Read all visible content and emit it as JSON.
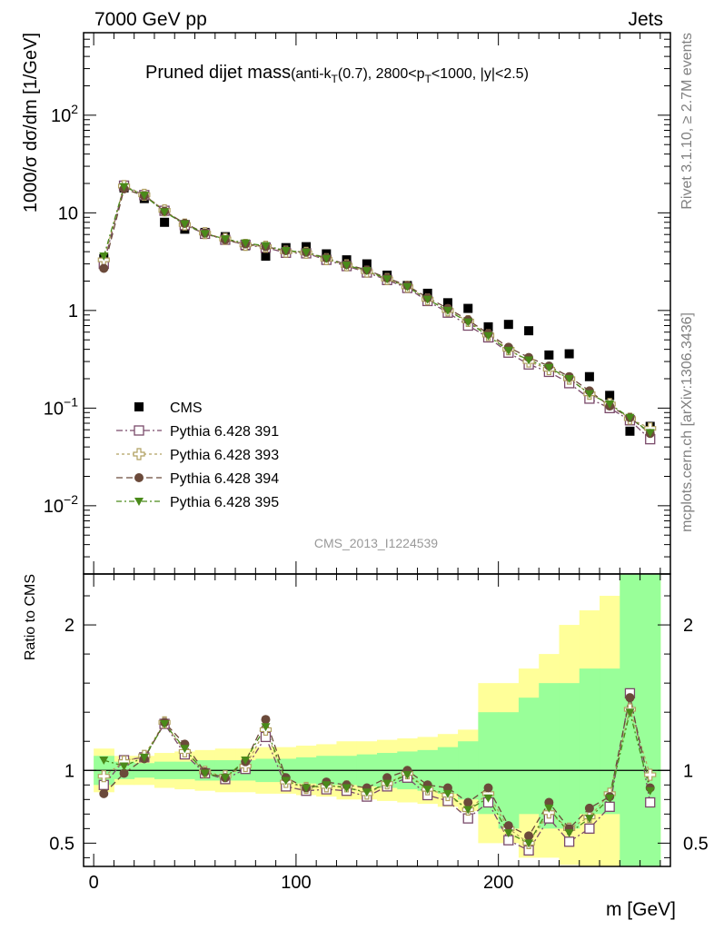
{
  "header": {
    "left": "7000 GeV pp",
    "right": "Jets",
    "side_top": "Rivet 3.1.10, ≥ 2.7M events",
    "side_bottom": "mcplots.cern.ch [arXiv:1306.3436]",
    "analysis_id": "CMS_2013_I1224539"
  },
  "chart_data": [
    {
      "type": "scatter",
      "panel": "main",
      "title_main": "Pruned dijet mass",
      "title_sub": "(anti-k_T(0.7), 2800<p_T<1000, |y|<2.5)",
      "ylabel": "1000/σ dσ/dm [1/GeV]",
      "xlabel": "",
      "y_scale": "log",
      "ylim": [
        0.002,
        700
      ],
      "xlim": [
        -5,
        285
      ],
      "y_tick_labels": [
        "10^-2",
        "10^-1",
        "1",
        "10",
        "10^2"
      ],
      "legend_position": "bottom-left",
      "x": [
        5,
        15,
        25,
        35,
        45,
        55,
        65,
        75,
        85,
        95,
        105,
        115,
        125,
        135,
        145,
        155,
        165,
        175,
        185,
        195,
        205,
        215,
        225,
        235,
        245,
        255,
        265,
        275
      ],
      "series": [
        {
          "name": "CMS",
          "marker": "square-filled",
          "color": "#000000",
          "values": [
            3.4,
            18.0,
            14.0,
            8.0,
            6.8,
            6.3,
            5.7,
            4.6,
            3.6,
            4.4,
            4.5,
            3.8,
            3.3,
            3.0,
            2.3,
            1.8,
            1.5,
            1.2,
            1.05,
            0.68,
            0.72,
            0.62,
            0.35,
            0.36,
            0.21,
            0.135,
            0.058,
            0.065
          ]
        },
        {
          "name": "Pythia 6.428 391",
          "marker": "square-open",
          "color": "#7a4a6a",
          "values": [
            3.0,
            19.0,
            15.2,
            10.5,
            7.5,
            6.1,
            5.3,
            4.7,
            4.4,
            3.9,
            3.85,
            3.3,
            2.85,
            2.45,
            2.05,
            1.7,
            1.25,
            0.95,
            0.7,
            0.53,
            0.37,
            0.28,
            0.235,
            0.18,
            0.125,
            0.1,
            0.075,
            0.048
          ]
        },
        {
          "name": "Pythia 6.428 393",
          "marker": "cross-open",
          "color": "#b0a060",
          "values": [
            3.3,
            18.8,
            15.3,
            10.6,
            7.6,
            6.2,
            5.4,
            4.7,
            4.5,
            4.0,
            3.9,
            3.35,
            2.9,
            2.5,
            2.1,
            1.75,
            1.3,
            1.0,
            0.78,
            0.56,
            0.4,
            0.3,
            0.25,
            0.2,
            0.14,
            0.11,
            0.078,
            0.062
          ]
        },
        {
          "name": "Pythia 6.428 394",
          "marker": "circle-filled",
          "color": "#6b4a3a",
          "values": [
            2.7,
            17.6,
            15.0,
            10.4,
            7.8,
            6.2,
            5.3,
            4.8,
            4.5,
            4.1,
            3.95,
            3.45,
            2.95,
            2.6,
            2.15,
            1.8,
            1.35,
            1.05,
            0.8,
            0.58,
            0.42,
            0.33,
            0.27,
            0.21,
            0.15,
            0.105,
            0.08,
            0.055
          ]
        },
        {
          "name": "Pythia 6.428 395",
          "marker": "triangle-down-filled",
          "color": "#4a8a1a",
          "values": [
            3.6,
            18.5,
            15.1,
            10.2,
            7.7,
            6.1,
            5.4,
            4.9,
            4.6,
            4.1,
            3.95,
            3.4,
            2.9,
            2.55,
            2.1,
            1.75,
            1.3,
            1.0,
            0.76,
            0.55,
            0.39,
            0.31,
            0.26,
            0.2,
            0.14,
            0.11,
            0.08,
            0.056
          ]
        }
      ]
    },
    {
      "type": "scatter",
      "panel": "ratio",
      "ylabel": "Ratio to CMS",
      "xlabel": "m [GeV]",
      "ylim": [
        0.34,
        2.35
      ],
      "xlim": [
        -5,
        285
      ],
      "x_ticks": [
        0,
        100,
        200
      ],
      "y_ticks": [
        0.5,
        1,
        2
      ],
      "reference_line": 1,
      "band_colors": {
        "inner": "#99ff99",
        "outer": "#ffff99"
      },
      "x": [
        5,
        15,
        25,
        35,
        45,
        55,
        65,
        75,
        85,
        95,
        105,
        115,
        125,
        135,
        145,
        155,
        165,
        175,
        185,
        195,
        205,
        215,
        225,
        235,
        245,
        255,
        265,
        275
      ],
      "band_inner": [
        [
          0.9,
          1.1
        ],
        [
          0.94,
          1.06
        ],
        [
          0.95,
          1.05
        ],
        [
          0.94,
          1.06
        ],
        [
          0.94,
          1.06
        ],
        [
          0.93,
          1.07
        ],
        [
          0.93,
          1.07
        ],
        [
          0.93,
          1.07
        ],
        [
          0.92,
          1.08
        ],
        [
          0.92,
          1.08
        ],
        [
          0.91,
          1.09
        ],
        [
          0.9,
          1.1
        ],
        [
          0.9,
          1.1
        ],
        [
          0.89,
          1.11
        ],
        [
          0.88,
          1.12
        ],
        [
          0.87,
          1.13
        ],
        [
          0.86,
          1.14
        ],
        [
          0.84,
          1.16
        ],
        [
          0.8,
          1.2
        ],
        [
          0.7,
          1.4
        ],
        [
          0.6,
          1.4
        ],
        [
          0.7,
          1.5
        ],
        [
          0.6,
          1.6
        ],
        [
          0.6,
          1.6
        ],
        [
          0.7,
          1.7
        ],
        [
          0.7,
          1.7
        ],
        [
          0.3,
          2.4
        ],
        [
          0.3,
          2.4
        ]
      ],
      "band_outer": [
        [
          0.85,
          1.15
        ],
        [
          0.9,
          1.1
        ],
        [
          0.9,
          1.1
        ],
        [
          0.88,
          1.12
        ],
        [
          0.87,
          1.13
        ],
        [
          0.86,
          1.14
        ],
        [
          0.85,
          1.15
        ],
        [
          0.85,
          1.15
        ],
        [
          0.84,
          1.16
        ],
        [
          0.84,
          1.16
        ],
        [
          0.83,
          1.17
        ],
        [
          0.82,
          1.18
        ],
        [
          0.8,
          1.2
        ],
        [
          0.8,
          1.2
        ],
        [
          0.79,
          1.21
        ],
        [
          0.78,
          1.22
        ],
        [
          0.77,
          1.23
        ],
        [
          0.75,
          1.25
        ],
        [
          0.72,
          1.28
        ],
        [
          0.5,
          1.6
        ],
        [
          0.5,
          1.6
        ],
        [
          0.4,
          1.7
        ],
        [
          0.4,
          1.8
        ],
        [
          0.35,
          2.0
        ],
        [
          0.3,
          2.1
        ],
        [
          0.3,
          2.2
        ],
        [
          0.3,
          2.4
        ],
        [
          0.3,
          2.4
        ]
      ],
      "series": [
        {
          "name": "Pythia 6.428 391",
          "marker": "square-open",
          "color": "#7a4a6a",
          "values": [
            0.9,
            1.07,
            1.09,
            1.32,
            1.11,
            0.98,
            0.94,
            1.01,
            1.23,
            0.89,
            0.86,
            0.87,
            0.86,
            0.82,
            0.89,
            0.95,
            0.83,
            0.79,
            0.67,
            0.78,
            0.52,
            0.45,
            0.67,
            0.51,
            0.6,
            0.75,
            1.53,
            0.78
          ]
        },
        {
          "name": "Pythia 6.428 393",
          "marker": "cross-open",
          "color": "#b0a060",
          "values": [
            0.96,
            1.06,
            1.1,
            1.33,
            1.13,
            0.99,
            0.96,
            1.03,
            1.28,
            0.92,
            0.88,
            0.89,
            0.89,
            0.84,
            0.91,
            0.98,
            0.87,
            0.83,
            0.73,
            0.84,
            0.6,
            0.5,
            0.71,
            0.6,
            0.68,
            0.84,
            1.42,
            0.97
          ]
        },
        {
          "name": "Pythia 6.428 394",
          "marker": "circle-filled",
          "color": "#6b4a3a",
          "values": [
            0.84,
            0.98,
            1.08,
            1.33,
            1.18,
            0.99,
            0.95,
            1.06,
            1.35,
            0.95,
            0.88,
            0.92,
            0.9,
            0.88,
            0.95,
            1.0,
            0.9,
            0.88,
            0.78,
            0.88,
            0.62,
            0.55,
            0.78,
            0.6,
            0.74,
            0.82,
            1.5,
            0.88
          ]
        },
        {
          "name": "Pythia 6.428 395",
          "marker": "triangle-down-filled",
          "color": "#4a8a1a",
          "values": [
            1.07,
            1.03,
            1.09,
            1.32,
            1.15,
            0.98,
            0.95,
            1.07,
            1.3,
            0.93,
            0.88,
            0.9,
            0.88,
            0.85,
            0.91,
            0.97,
            0.87,
            0.84,
            0.73,
            0.81,
            0.57,
            0.5,
            0.74,
            0.57,
            0.67,
            0.81,
            1.4,
            0.86
          ]
        }
      ]
    }
  ]
}
